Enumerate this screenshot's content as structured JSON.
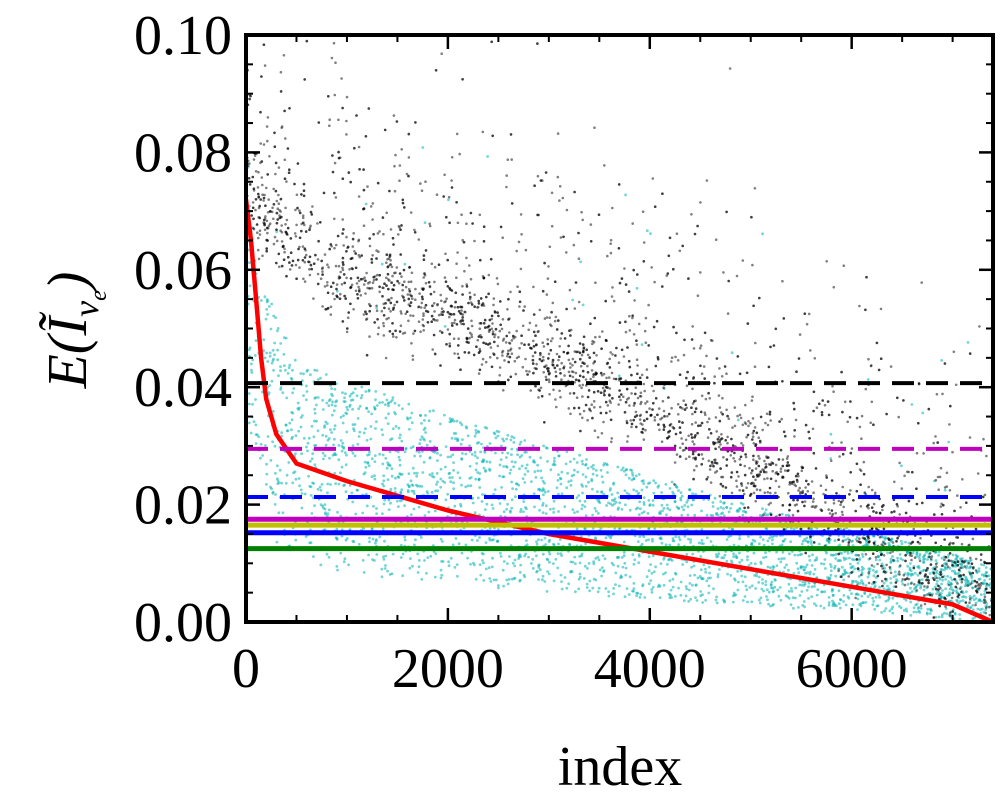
{
  "chart_data": {
    "type": "scatter",
    "title": "",
    "xlabel": "index",
    "ylabel": "E(Ĩ_νe)",
    "xlim": [
      0,
      7400
    ],
    "ylim": [
      0,
      0.1
    ],
    "x_ticks": [
      0,
      2000,
      4000,
      6000
    ],
    "x_tick_labels": [
      "0",
      "2000",
      "4000",
      "6000"
    ],
    "y_ticks": [
      0,
      0.02,
      0.04,
      0.06,
      0.08,
      0.1
    ],
    "y_tick_labels": [
      "0.00",
      "0.02",
      "0.04",
      "0.06",
      "0.08",
      "0.10"
    ],
    "grid": false,
    "legend": "none",
    "scatter_series": [
      {
        "color": "#00b2b2",
        "band_upper": [
          [
            0,
            0.085
          ],
          [
            100,
            0.06
          ],
          [
            500,
            0.045
          ],
          [
            1500,
            0.038
          ],
          [
            3000,
            0.03
          ],
          [
            5000,
            0.02
          ],
          [
            7400,
            0.01
          ]
        ],
        "band_lower": [
          [
            0,
            0.035
          ],
          [
            300,
            0.012
          ],
          [
            1000,
            0.008
          ],
          [
            3000,
            0.005
          ],
          [
            7400,
            0.0
          ]
        ],
        "point_count": 7400
      },
      {
        "color": "#000000",
        "band_center": [
          [
            0,
            0.075
          ],
          [
            200,
            0.068
          ],
          [
            1000,
            0.058
          ],
          [
            2000,
            0.052
          ],
          [
            3000,
            0.044
          ],
          [
            4000,
            0.036
          ],
          [
            5000,
            0.027
          ],
          [
            6000,
            0.015
          ],
          [
            7000,
            0.008
          ],
          [
            7400,
            0.005
          ]
        ],
        "band_spread": 0.004,
        "point_count": 7400
      }
    ],
    "curve_series": [
      {
        "color": "#ff0000",
        "points": [
          [
            0,
            0.072
          ],
          [
            50,
            0.065
          ],
          [
            100,
            0.055
          ],
          [
            150,
            0.045
          ],
          [
            200,
            0.038
          ],
          [
            300,
            0.032
          ],
          [
            500,
            0.027
          ],
          [
            1000,
            0.024
          ],
          [
            2000,
            0.019
          ],
          [
            3000,
            0.015
          ],
          [
            4000,
            0.012
          ],
          [
            5000,
            0.009
          ],
          [
            6000,
            0.006
          ],
          [
            7000,
            0.003
          ],
          [
            7400,
            0.0
          ]
        ]
      }
    ],
    "hlines": [
      {
        "y": 0.0407,
        "color": "#000000",
        "style": "dashed"
      },
      {
        "y": 0.0295,
        "color": "#bf00bf",
        "style": "dashed"
      },
      {
        "y": 0.0213,
        "color": "#0000ff",
        "style": "dashed"
      },
      {
        "y": 0.0175,
        "color": "#bf00bf",
        "style": "solid"
      },
      {
        "y": 0.0165,
        "color": "#bfbf00",
        "style": "solid"
      },
      {
        "y": 0.0152,
        "color": "#0000ff",
        "style": "solid"
      },
      {
        "y": 0.0125,
        "color": "#008000",
        "style": "solid"
      }
    ]
  }
}
